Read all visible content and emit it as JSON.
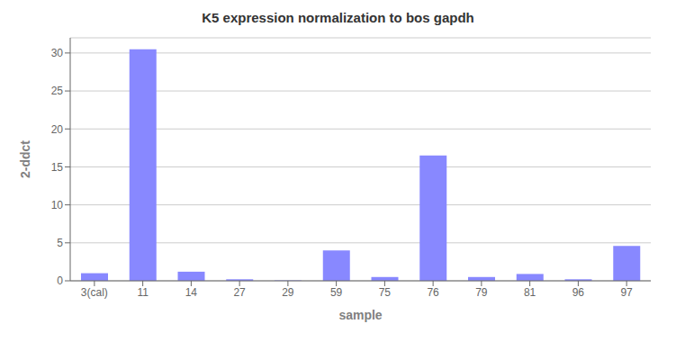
{
  "chart_data": {
    "type": "bar",
    "title": "K5 expression normalization to bos gapdh",
    "xlabel": "sample",
    "ylabel": "2-ddct",
    "categories": [
      "3(cal)",
      "11",
      "14",
      "27",
      "29",
      "59",
      "75",
      "76",
      "79",
      "81",
      "96",
      "97"
    ],
    "values": [
      1.0,
      30.5,
      1.2,
      0.2,
      0.05,
      4.0,
      0.5,
      16.5,
      0.5,
      0.9,
      0.2,
      4.6
    ],
    "color": "#8888ff",
    "ylim": [
      0,
      32
    ],
    "yticks": [
      0,
      5,
      10,
      15,
      20,
      25,
      30
    ],
    "grid": true
  }
}
